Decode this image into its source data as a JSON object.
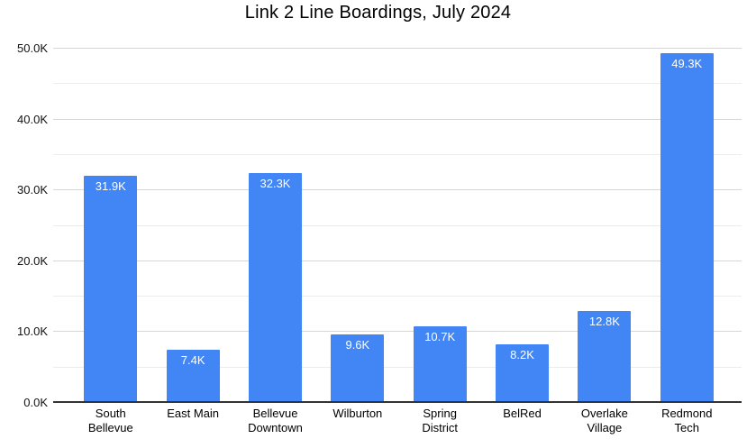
{
  "chart_data": {
    "type": "bar",
    "title": "Link 2 Line Boardings, July 2024",
    "categories": [
      "South Bellevue",
      "East Main",
      "Bellevue Downtown",
      "Wilburton",
      "Spring District",
      "BelRed",
      "Overlake Village",
      "Redmond Tech"
    ],
    "values": [
      31900,
      7400,
      32300,
      9600,
      10700,
      8200,
      12800,
      49300
    ],
    "bar_labels": [
      "31.9K",
      "7.4K",
      "32.3K",
      "9.6K",
      "10.7K",
      "8.2K",
      "12.8K",
      "49.3K"
    ],
    "xlabel": "",
    "ylabel": "",
    "ylim": [
      0,
      50000
    ],
    "y_major_tick_interval": 10000,
    "y_minor_tick_interval": 5000,
    "y_tick_labels": [
      "0.0K",
      "10.0K",
      "20.0K",
      "30.0K",
      "40.0K",
      "50.0K"
    ],
    "grid": true,
    "legend_position": "none",
    "bar_color": "#4285f4",
    "bar_label_color": "#ffffff",
    "major_grid_color": "#d6d6d6",
    "minor_grid_color": "#ececec",
    "axis_line_color": "#333333"
  }
}
